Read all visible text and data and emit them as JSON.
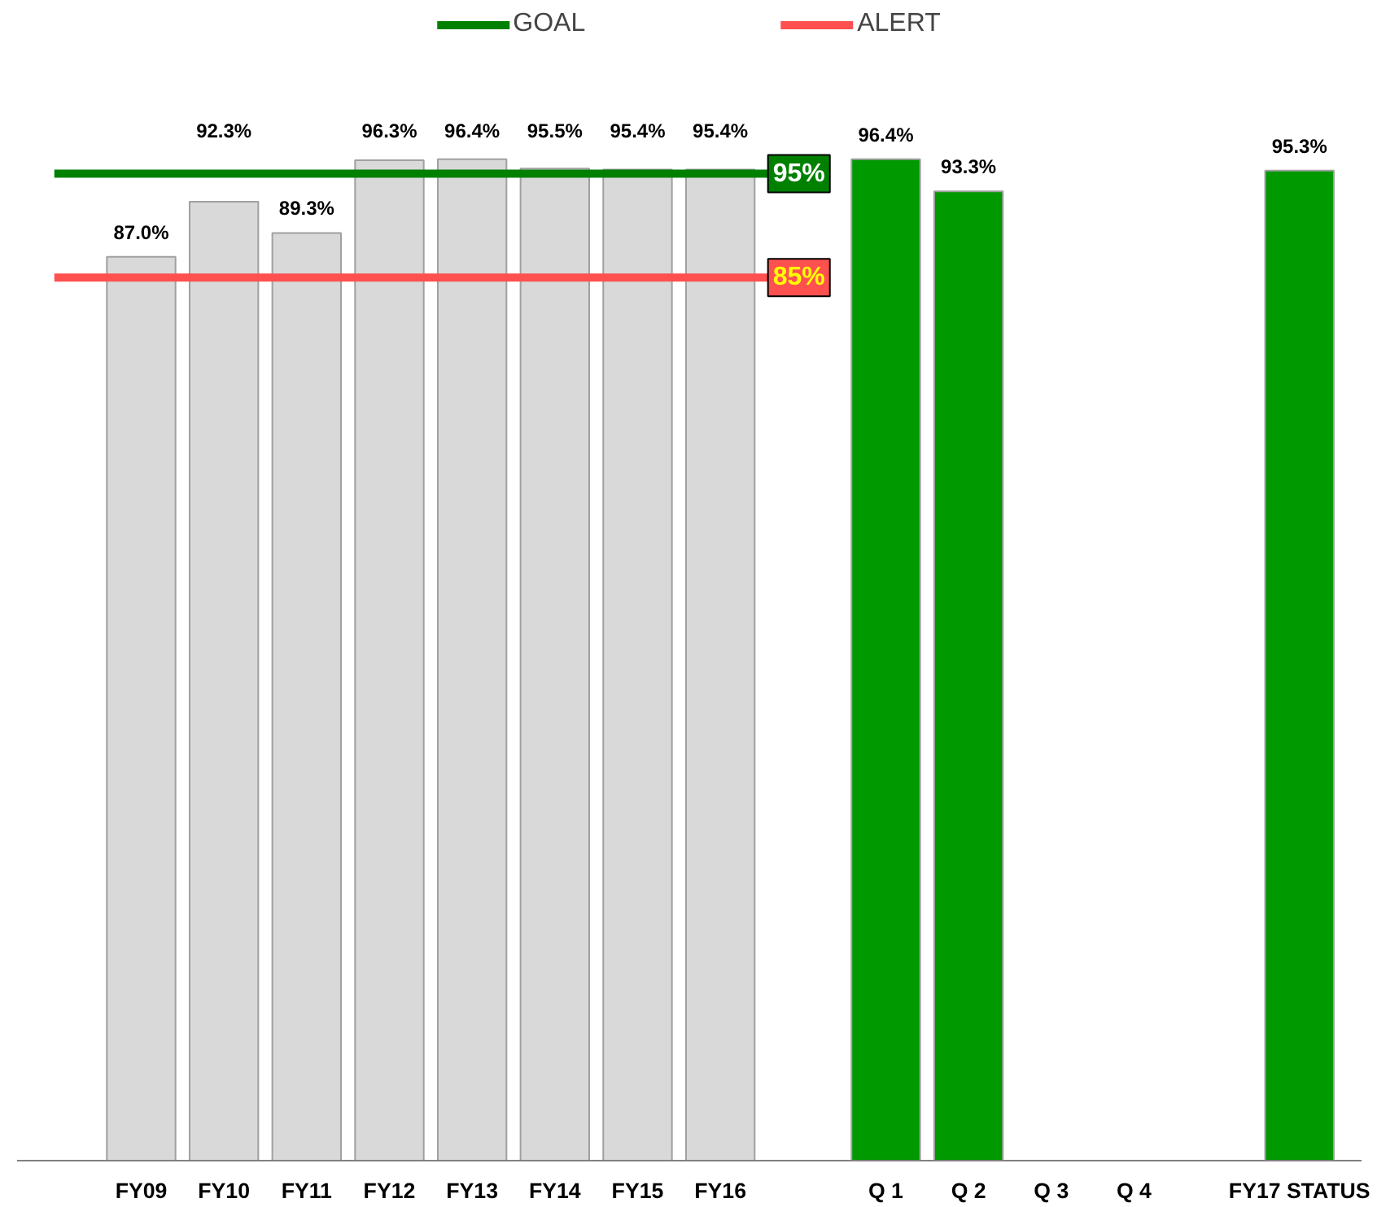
{
  "chart_data": {
    "type": "bar",
    "categories": [
      "FY09",
      "FY10",
      "FY11",
      "FY12",
      "FY13",
      "FY14",
      "FY15",
      "FY16",
      null,
      "Q 1",
      "Q 2",
      "Q 3",
      "Q 4",
      null,
      "FY17 STATUS"
    ],
    "values": [
      87.0,
      92.3,
      89.3,
      96.3,
      96.4,
      95.5,
      95.4,
      95.4,
      null,
      96.4,
      93.3,
      null,
      null,
      null,
      95.3
    ],
    "colors": [
      "#d9d9d9",
      "#d9d9d9",
      "#d9d9d9",
      "#d9d9d9",
      "#d9d9d9",
      "#d9d9d9",
      "#d9d9d9",
      "#d9d9d9",
      null,
      "#009900",
      "#009900",
      "#009900",
      "#009900",
      null,
      "#009900"
    ],
    "value_labels": [
      "87.0%",
      "92.3%",
      "89.3%",
      "96.3%",
      "96.4%",
      "95.5%",
      "95.4%",
      "95.4%",
      null,
      "96.4%",
      "93.3%",
      null,
      null,
      null,
      "95.3%"
    ],
    "ref_lines": [
      {
        "axis": "y",
        "value": 95,
        "label": "GOAL",
        "color": "#008000"
      },
      {
        "axis": "y",
        "value": 85,
        "label": "ALERT",
        "color": "#ff5050"
      }
    ],
    "annotations": [
      {
        "text": "95%",
        "y": 95
      },
      {
        "text": "85%",
        "y": 85
      }
    ],
    "legend": "top",
    "grid": false
  }
}
